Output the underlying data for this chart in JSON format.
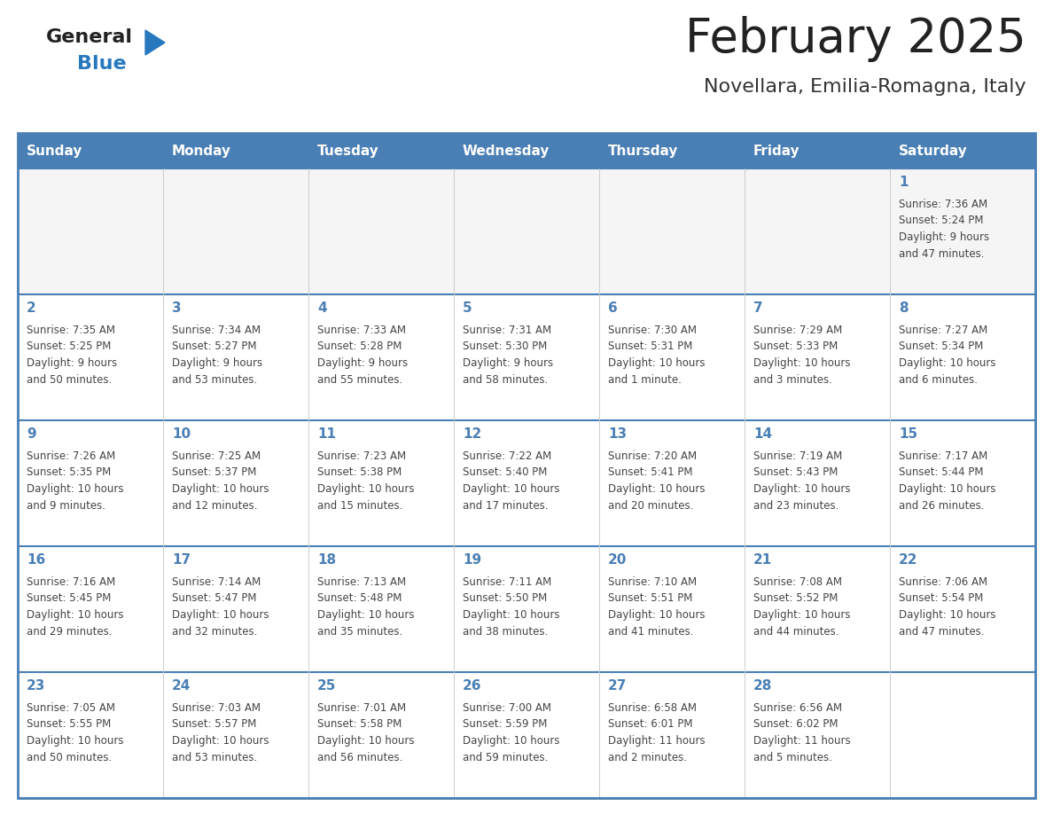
{
  "title": "February 2025",
  "subtitle": "Novellara, Emilia-Romagna, Italy",
  "header_bg": "#4a7fb5",
  "header_text": "#ffffff",
  "border_color": "#4a7fb5",
  "row_divider_color": "#4a7fb5",
  "col_divider_color": "#cccccc",
  "day_number_color": "#4a7fb5",
  "text_color": "#444444",
  "day_names": [
    "Sunday",
    "Monday",
    "Tuesday",
    "Wednesday",
    "Thursday",
    "Friday",
    "Saturday"
  ],
  "days": [
    {
      "day": 1,
      "col": 6,
      "row": 0,
      "sunrise": "7:36 AM",
      "sunset": "5:24 PM",
      "daylight": "9 hours and 47 minutes."
    },
    {
      "day": 2,
      "col": 0,
      "row": 1,
      "sunrise": "7:35 AM",
      "sunset": "5:25 PM",
      "daylight": "9 hours and 50 minutes."
    },
    {
      "day": 3,
      "col": 1,
      "row": 1,
      "sunrise": "7:34 AM",
      "sunset": "5:27 PM",
      "daylight": "9 hours and 53 minutes."
    },
    {
      "day": 4,
      "col": 2,
      "row": 1,
      "sunrise": "7:33 AM",
      "sunset": "5:28 PM",
      "daylight": "9 hours and 55 minutes."
    },
    {
      "day": 5,
      "col": 3,
      "row": 1,
      "sunrise": "7:31 AM",
      "sunset": "5:30 PM",
      "daylight": "9 hours and 58 minutes."
    },
    {
      "day": 6,
      "col": 4,
      "row": 1,
      "sunrise": "7:30 AM",
      "sunset": "5:31 PM",
      "daylight": "10 hours and 1 minute."
    },
    {
      "day": 7,
      "col": 5,
      "row": 1,
      "sunrise": "7:29 AM",
      "sunset": "5:33 PM",
      "daylight": "10 hours and 3 minutes."
    },
    {
      "day": 8,
      "col": 6,
      "row": 1,
      "sunrise": "7:27 AM",
      "sunset": "5:34 PM",
      "daylight": "10 hours and 6 minutes."
    },
    {
      "day": 9,
      "col": 0,
      "row": 2,
      "sunrise": "7:26 AM",
      "sunset": "5:35 PM",
      "daylight": "10 hours and 9 minutes."
    },
    {
      "day": 10,
      "col": 1,
      "row": 2,
      "sunrise": "7:25 AM",
      "sunset": "5:37 PM",
      "daylight": "10 hours and 12 minutes."
    },
    {
      "day": 11,
      "col": 2,
      "row": 2,
      "sunrise": "7:23 AM",
      "sunset": "5:38 PM",
      "daylight": "10 hours and 15 minutes."
    },
    {
      "day": 12,
      "col": 3,
      "row": 2,
      "sunrise": "7:22 AM",
      "sunset": "5:40 PM",
      "daylight": "10 hours and 17 minutes."
    },
    {
      "day": 13,
      "col": 4,
      "row": 2,
      "sunrise": "7:20 AM",
      "sunset": "5:41 PM",
      "daylight": "10 hours and 20 minutes."
    },
    {
      "day": 14,
      "col": 5,
      "row": 2,
      "sunrise": "7:19 AM",
      "sunset": "5:43 PM",
      "daylight": "10 hours and 23 minutes."
    },
    {
      "day": 15,
      "col": 6,
      "row": 2,
      "sunrise": "7:17 AM",
      "sunset": "5:44 PM",
      "daylight": "10 hours and 26 minutes."
    },
    {
      "day": 16,
      "col": 0,
      "row": 3,
      "sunrise": "7:16 AM",
      "sunset": "5:45 PM",
      "daylight": "10 hours and 29 minutes."
    },
    {
      "day": 17,
      "col": 1,
      "row": 3,
      "sunrise": "7:14 AM",
      "sunset": "5:47 PM",
      "daylight": "10 hours and 32 minutes."
    },
    {
      "day": 18,
      "col": 2,
      "row": 3,
      "sunrise": "7:13 AM",
      "sunset": "5:48 PM",
      "daylight": "10 hours and 35 minutes."
    },
    {
      "day": 19,
      "col": 3,
      "row": 3,
      "sunrise": "7:11 AM",
      "sunset": "5:50 PM",
      "daylight": "10 hours and 38 minutes."
    },
    {
      "day": 20,
      "col": 4,
      "row": 3,
      "sunrise": "7:10 AM",
      "sunset": "5:51 PM",
      "daylight": "10 hours and 41 minutes."
    },
    {
      "day": 21,
      "col": 5,
      "row": 3,
      "sunrise": "7:08 AM",
      "sunset": "5:52 PM",
      "daylight": "10 hours and 44 minutes."
    },
    {
      "day": 22,
      "col": 6,
      "row": 3,
      "sunrise": "7:06 AM",
      "sunset": "5:54 PM",
      "daylight": "10 hours and 47 minutes."
    },
    {
      "day": 23,
      "col": 0,
      "row": 4,
      "sunrise": "7:05 AM",
      "sunset": "5:55 PM",
      "daylight": "10 hours and 50 minutes."
    },
    {
      "day": 24,
      "col": 1,
      "row": 4,
      "sunrise": "7:03 AM",
      "sunset": "5:57 PM",
      "daylight": "10 hours and 53 minutes."
    },
    {
      "day": 25,
      "col": 2,
      "row": 4,
      "sunrise": "7:01 AM",
      "sunset": "5:58 PM",
      "daylight": "10 hours and 56 minutes."
    },
    {
      "day": 26,
      "col": 3,
      "row": 4,
      "sunrise": "7:00 AM",
      "sunset": "5:59 PM",
      "daylight": "10 hours and 59 minutes."
    },
    {
      "day": 27,
      "col": 4,
      "row": 4,
      "sunrise": "6:58 AM",
      "sunset": "6:01 PM",
      "daylight": "11 hours and 2 minutes."
    },
    {
      "day": 28,
      "col": 5,
      "row": 4,
      "sunrise": "6:56 AM",
      "sunset": "6:02 PM",
      "daylight": "11 hours and 5 minutes."
    }
  ],
  "fig_width": 11.88,
  "fig_height": 9.18,
  "logo_general_color": "#222222",
  "logo_blue_color": "#2878be",
  "logo_triangle_color": "#2878be",
  "title_color": "#222222",
  "subtitle_color": "#333333",
  "title_fontsize": 38,
  "subtitle_fontsize": 16,
  "header_fontsize": 11,
  "day_num_fontsize": 11,
  "cell_text_fontsize": 8.5
}
